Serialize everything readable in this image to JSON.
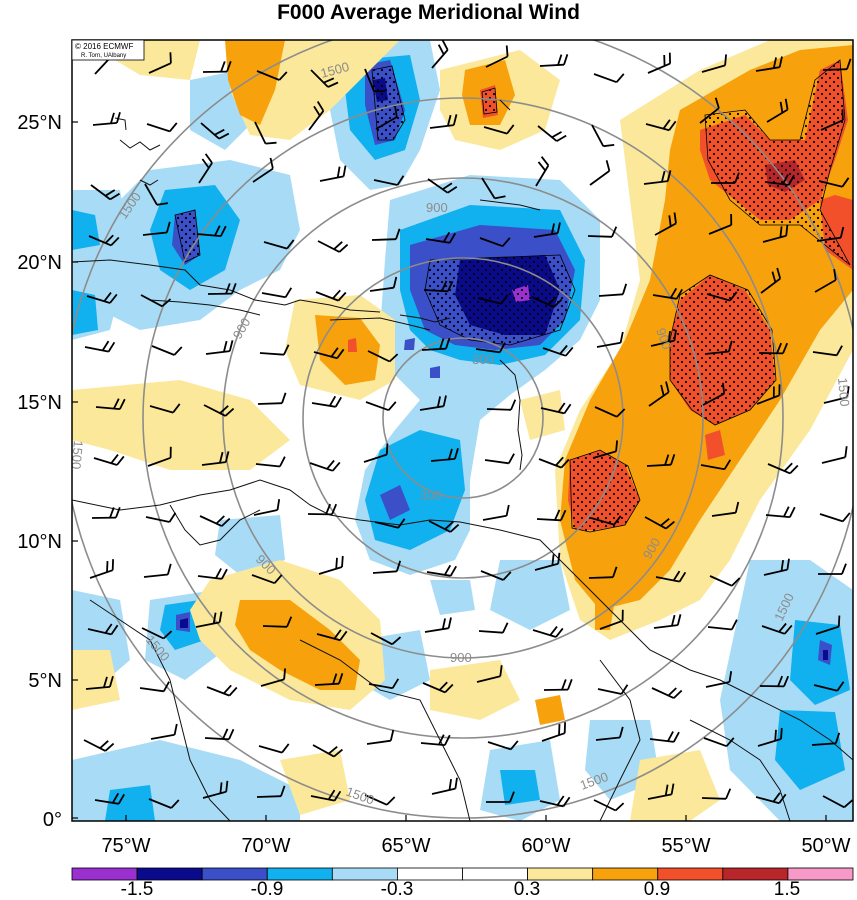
{
  "title": "F000 Average Meridional Wind",
  "credit": {
    "line1": "© 2016 ECMWF",
    "line2": "R. Torn, UAlbany"
  },
  "axes": {
    "lat_labels": [
      "25°N",
      "20°N",
      "15°N",
      "10°N",
      "5°N",
      "0°"
    ],
    "lon_labels": [
      "75°W",
      "70°W",
      "65°W",
      "60°W",
      "55°W",
      "50°W"
    ]
  },
  "colorbar": {
    "labels": [
      "-1.5",
      "-0.9",
      "-0.3",
      "0.3",
      "0.9",
      "1.5"
    ],
    "colors": [
      "#9b30d0",
      "#0a0a8c",
      "#3a4fc8",
      "#11b0ee",
      "#a8dcf6",
      "#ffffff",
      "#ffffff",
      "#fbe89a",
      "#f7a20c",
      "#f1502a",
      "#b8262a",
      "#f79ac7"
    ]
  },
  "contour_labels": {
    "ring_300": "300",
    "ring_900": "900",
    "ring_1500": "1500"
  },
  "colors": {
    "neg_extreme": "#9b30d0",
    "neg_strong": "#0a0a8c",
    "neg_mid": "#3a4fc8",
    "neg_light": "#11b0ee",
    "neg_weak": "#a8dcf6",
    "pos_weak": "#fbe89a",
    "pos_light": "#f7a20c",
    "pos_mid": "#f1502a",
    "pos_strong": "#b8262a",
    "pos_extreme": "#f79ac7",
    "range_rings": "#8c8c8c"
  }
}
